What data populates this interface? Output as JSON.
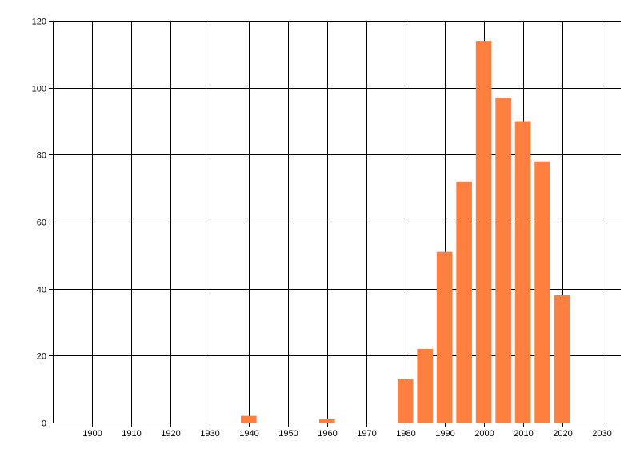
{
  "chart_data": {
    "type": "bar",
    "title": "",
    "xlabel": "",
    "ylabel": "",
    "x": [
      1940,
      1960,
      1980,
      1985,
      1990,
      1995,
      2000,
      2005,
      2010,
      2015,
      2020
    ],
    "values": [
      2,
      1,
      13,
      22,
      51,
      72,
      114,
      97,
      90,
      78,
      38
    ],
    "bar_width_years": 4,
    "xlim": [
      1890,
      2035
    ],
    "ylim": [
      0,
      120
    ],
    "x_ticks": [
      "1900",
      "1910",
      "1920",
      "1930",
      "1940",
      "1950",
      "1960",
      "1970",
      "1980",
      "1990",
      "2000",
      "2010",
      "2020",
      "2030"
    ],
    "y_ticks": [
      "0",
      "20",
      "40",
      "60",
      "80",
      "100",
      "120"
    ],
    "grid": true,
    "legend": "none",
    "colors": {
      "bar": "#FF7F41",
      "grid": "#000000",
      "background": "#FFFFFF"
    }
  }
}
